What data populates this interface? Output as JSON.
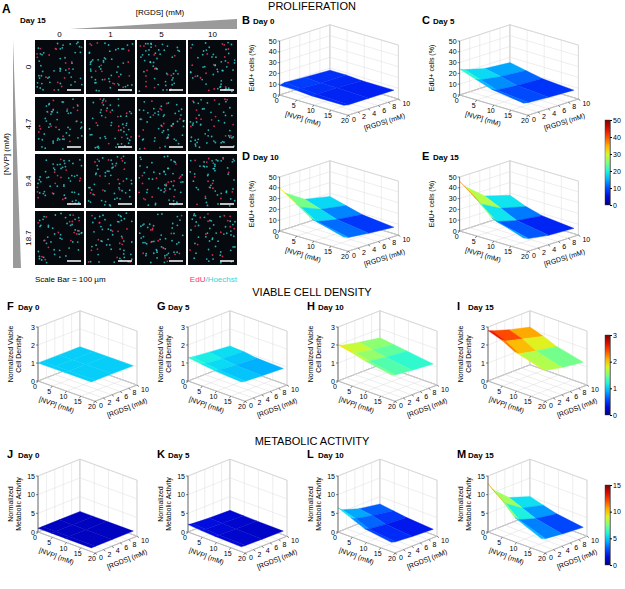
{
  "sections": [
    "PROLIFERATION",
    "VIABLE CELL DENSITY",
    "METABOLIC ACTIVITY"
  ],
  "image_panel": {
    "panel": "A",
    "title": "Day 15",
    "col_title": "[RGDS] (mM)",
    "col_labels": [
      "0",
      "1",
      "5",
      "10"
    ],
    "row_title": "[NVP] (mM)",
    "row_labels": [
      "0",
      "4.7",
      "9.4",
      "18.7"
    ],
    "note": "Scale Bar = 100 µm",
    "stain_labels": [
      {
        "text": "EdU",
        "color": "#ff3366"
      },
      {
        "text": "/Hoechst",
        "color": "#33d6d6"
      }
    ]
  },
  "chart_data": [
    {
      "type": "surface",
      "panel": "B",
      "title": "Day 0",
      "x_label": "[NVP] (mM)",
      "y_label": "[RGDS] (mM)",
      "z_label": [
        "EdU+ cells (%)"
      ],
      "x": [
        0,
        4.7,
        9.4,
        18.7
      ],
      "y": [
        0,
        1,
        5,
        10
      ],
      "z": [
        [
          9,
          10,
          9,
          8
        ],
        [
          9,
          9,
          8,
          8
        ],
        [
          8,
          8,
          8,
          7
        ],
        [
          8,
          7,
          7,
          7
        ]
      ],
      "xlim": [
        0,
        20
      ],
      "xticks": [
        0,
        5,
        10,
        15,
        20
      ],
      "ylim": [
        0,
        10
      ],
      "yticks": [
        0,
        2,
        4,
        6,
        8,
        10
      ],
      "zlim": [
        0,
        50
      ],
      "zticks": [
        0,
        10,
        20,
        30,
        40,
        50
      ],
      "grid": true
    },
    {
      "type": "surface",
      "panel": "C",
      "title": "Day 5",
      "x_label": "[NVP] (mM)",
      "y_label": "[RGDS] (mM)",
      "z_label": [
        "EdU+ cells (%)"
      ],
      "x": [
        0,
        4.7,
        9.4,
        18.7
      ],
      "y": [
        0,
        1,
        5,
        10
      ],
      "z": [
        [
          24,
          22,
          17,
          15
        ],
        [
          19,
          17,
          14,
          12
        ],
        [
          14,
          12,
          10,
          9
        ],
        [
          10,
          9,
          8,
          7
        ]
      ],
      "xlim": [
        0,
        20
      ],
      "xticks": [
        0,
        5,
        10,
        15,
        20
      ],
      "ylim": [
        0,
        10
      ],
      "yticks": [
        0,
        2,
        4,
        6,
        8,
        10
      ],
      "zlim": [
        0,
        50
      ],
      "zticks": [
        0,
        10,
        20,
        30,
        40,
        50
      ],
      "grid": true
    },
    {
      "type": "surface",
      "panel": "D",
      "title": "Day 10",
      "x_label": "[NVP] (mM)",
      "y_label": "[RGDS] (mM)",
      "z_label": [
        "EdU+ cells (%)"
      ],
      "x": [
        0,
        4.7,
        9.4,
        18.7
      ],
      "y": [
        0,
        1,
        5,
        10
      ],
      "z": [
        [
          40,
          34,
          22,
          17
        ],
        [
          30,
          25,
          17,
          13
        ],
        [
          20,
          16,
          12,
          9
        ],
        [
          12,
          10,
          8,
          6
        ]
      ],
      "xlim": [
        0,
        20
      ],
      "xticks": [
        0,
        5,
        10,
        15,
        20
      ],
      "ylim": [
        0,
        10
      ],
      "yticks": [
        0,
        2,
        4,
        6,
        8,
        10
      ],
      "zlim": [
        0,
        50
      ],
      "zticks": [
        0,
        10,
        20,
        30,
        40,
        50
      ],
      "grid": true
    },
    {
      "type": "surface",
      "panel": "E",
      "title": "Day 15",
      "x_label": "[NVP] (mM)",
      "y_label": "[RGDS] (mM)",
      "z_label": [
        "EdU+ cells (%)"
      ],
      "x": [
        0,
        4.7,
        9.4,
        18.7
      ],
      "y": [
        0,
        1,
        5,
        10
      ],
      "z": [
        [
          46,
          40,
          25,
          18
        ],
        [
          35,
          28,
          18,
          12
        ],
        [
          21,
          16,
          11,
          8
        ],
        [
          11,
          9,
          6,
          5
        ]
      ],
      "xlim": [
        0,
        20
      ],
      "xticks": [
        0,
        5,
        10,
        15,
        20
      ],
      "ylim": [
        0,
        10
      ],
      "yticks": [
        0,
        2,
        4,
        6,
        8,
        10
      ],
      "zlim": [
        0,
        50
      ],
      "zticks": [
        0,
        10,
        20,
        30,
        40,
        50
      ],
      "grid": true
    },
    {
      "type": "surface",
      "panel": "F",
      "title": "Day 0",
      "x_label": "[NVP] (mM)",
      "y_label": "[RGDS] (mM)",
      "z_label": [
        "Normalized Viable",
        "Cell Density"
      ],
      "x": [
        0,
        4.7,
        9.4,
        18.7
      ],
      "y": [
        0,
        1,
        5,
        10
      ],
      "z": [
        [
          1,
          1,
          1,
          1
        ],
        [
          1,
          1,
          1,
          1
        ],
        [
          1,
          1,
          1,
          1
        ],
        [
          1,
          1,
          1,
          1
        ]
      ],
      "xlim": [
        0,
        20
      ],
      "xticks": [
        0,
        5,
        10,
        15,
        20
      ],
      "ylim": [
        0,
        10
      ],
      "yticks": [
        0,
        2,
        4,
        6,
        8,
        10
      ],
      "zlim": [
        0,
        3
      ],
      "zticks": [
        0,
        1,
        2,
        3
      ],
      "grid": true
    },
    {
      "type": "surface",
      "panel": "G",
      "title": "Day 5",
      "x_label": "[NVP] (mM)",
      "y_label": "[RGDS] (mM)",
      "z_label": [
        "Normalized Viable",
        "Cell Density"
      ],
      "x": [
        0,
        4.7,
        9.4,
        18.7
      ],
      "y": [
        0,
        1,
        5,
        10
      ],
      "z": [
        [
          1.3,
          1.25,
          1.15,
          1.05
        ],
        [
          1.2,
          1.15,
          1.05,
          1.0
        ],
        [
          1.1,
          1.05,
          0.95,
          0.9
        ],
        [
          1.0,
          0.95,
          0.9,
          0.85
        ]
      ],
      "xlim": [
        0,
        20
      ],
      "xticks": [
        0,
        5,
        10,
        15,
        20
      ],
      "ylim": [
        0,
        10
      ],
      "yticks": [
        0,
        2,
        4,
        6,
        8,
        10
      ],
      "zlim": [
        0,
        3
      ],
      "zticks": [
        0,
        1,
        2,
        3
      ],
      "grid": true
    },
    {
      "type": "surface",
      "panel": "H",
      "title": "Day 10",
      "x_label": "[NVP] (mM)",
      "y_label": "[RGDS] (mM)",
      "z_label": [
        "Normalized Viable",
        "Cell Density"
      ],
      "x": [
        0,
        4.7,
        9.4,
        18.7
      ],
      "y": [
        0,
        1,
        5,
        10
      ],
      "z": [
        [
          2.0,
          1.9,
          1.7,
          1.5
        ],
        [
          1.85,
          1.75,
          1.55,
          1.4
        ],
        [
          1.65,
          1.55,
          1.4,
          1.3
        ],
        [
          1.4,
          1.3,
          1.2,
          1.1
        ]
      ],
      "xlim": [
        0,
        20
      ],
      "xticks": [
        0,
        5,
        10,
        15,
        20
      ],
      "ylim": [
        0,
        10
      ],
      "yticks": [
        0,
        2,
        4,
        6,
        8,
        10
      ],
      "zlim": [
        0,
        3
      ],
      "zticks": [
        0,
        1,
        2,
        3
      ],
      "grid": true
    },
    {
      "type": "surface",
      "panel": "I",
      "title": "Day 15",
      "x_label": "[NVP] (mM)",
      "y_label": "[RGDS] (mM)",
      "z_label": [
        "Normalized Viable",
        "Cell Density"
      ],
      "x": [
        0,
        4.7,
        9.4,
        18.7
      ],
      "y": [
        0,
        1,
        5,
        10
      ],
      "z": [
        [
          2.8,
          2.7,
          2.4,
          2.1
        ],
        [
          2.55,
          2.4,
          2.15,
          1.85
        ],
        [
          2.15,
          1.95,
          1.75,
          1.55
        ],
        [
          1.75,
          1.55,
          1.35,
          1.2
        ]
      ],
      "xlim": [
        0,
        20
      ],
      "xticks": [
        0,
        5,
        10,
        15,
        20
      ],
      "ylim": [
        0,
        10
      ],
      "yticks": [
        0,
        2,
        4,
        6,
        8,
        10
      ],
      "zlim": [
        0,
        3
      ],
      "zticks": [
        0,
        1,
        2,
        3
      ],
      "grid": true
    },
    {
      "type": "surface",
      "panel": "J",
      "title": "Day 0",
      "x_label": "[NVP] (mM)",
      "y_label": "[RGDS] (mM)",
      "z_label": [
        "Normalized",
        "Metabolic Activity"
      ],
      "x": [
        0,
        4.7,
        9.4,
        18.7
      ],
      "y": [
        0,
        1,
        5,
        10
      ],
      "z": [
        [
          1,
          1,
          1,
          1
        ],
        [
          1,
          1,
          1,
          1
        ],
        [
          1,
          1,
          1,
          1
        ],
        [
          1,
          1,
          1,
          1
        ]
      ],
      "xlim": [
        0,
        20
      ],
      "xticks": [
        0,
        5,
        10,
        15,
        20
      ],
      "ylim": [
        0,
        10
      ],
      "yticks": [
        0,
        2,
        4,
        6,
        8,
        10
      ],
      "zlim": [
        0,
        15
      ],
      "zticks": [
        0,
        5,
        10,
        15
      ],
      "grid": true
    },
    {
      "type": "surface",
      "panel": "K",
      "title": "Day 5",
      "x_label": "[NVP] (mM)",
      "y_label": "[RGDS] (mM)",
      "z_label": [
        "Normalized",
        "Metabolic Activity"
      ],
      "x": [
        0,
        4.7,
        9.4,
        18.7
      ],
      "y": [
        0,
        1,
        5,
        10
      ],
      "z": [
        [
          2.0,
          1.8,
          1.5,
          1.3
        ],
        [
          1.7,
          1.6,
          1.4,
          1.2
        ],
        [
          1.5,
          1.4,
          1.2,
          1.1
        ],
        [
          1.3,
          1.2,
          1.1,
          1.0
        ]
      ],
      "xlim": [
        0,
        20
      ],
      "xticks": [
        0,
        5,
        10,
        15,
        20
      ],
      "ylim": [
        0,
        10
      ],
      "yticks": [
        0,
        2,
        4,
        6,
        8,
        10
      ],
      "zlim": [
        0,
        15
      ],
      "zticks": [
        0,
        5,
        10,
        15
      ],
      "grid": true
    },
    {
      "type": "surface",
      "panel": "L",
      "title": "Day 10",
      "x_label": "[NVP] (mM)",
      "y_label": "[RGDS] (mM)",
      "z_label": [
        "Normalized",
        "Metabolic Activity"
      ],
      "x": [
        0,
        4.7,
        9.4,
        18.7
      ],
      "y": [
        0,
        1,
        5,
        10
      ],
      "z": [
        [
          6.5,
          5.5,
          4,
          3
        ],
        [
          5,
          4.5,
          3.5,
          2.5
        ],
        [
          3.5,
          3,
          2.5,
          2
        ],
        [
          2.5,
          2.2,
          1.8,
          1.5
        ]
      ],
      "xlim": [
        0,
        20
      ],
      "xticks": [
        0,
        5,
        10,
        15,
        20
      ],
      "ylim": [
        0,
        10
      ],
      "yticks": [
        0,
        2,
        4,
        6,
        8,
        10
      ],
      "zlim": [
        0,
        15
      ],
      "zticks": [
        0,
        5,
        10,
        15
      ],
      "grid": true
    },
    {
      "type": "surface",
      "panel": "M",
      "title": "Day 15",
      "x_label": "[NVP] (mM)",
      "y_label": "[RGDS] (mM)",
      "z_label": [
        "Normalized",
        "Metabolic Activity"
      ],
      "x": [
        0,
        4.7,
        9.4,
        18.7
      ],
      "y": [
        0,
        1,
        5,
        10
      ],
      "z": [
        [
          13,
          11,
          7,
          5
        ],
        [
          10,
          8.5,
          5.5,
          4
        ],
        [
          6.5,
          5.5,
          4,
          3
        ],
        [
          3.5,
          3,
          2.5,
          2
        ]
      ],
      "xlim": [
        0,
        20
      ],
      "xticks": [
        0,
        5,
        10,
        15,
        20
      ],
      "ylim": [
        0,
        10
      ],
      "yticks": [
        0,
        2,
        4,
        6,
        8,
        10
      ],
      "zlim": [
        0,
        15
      ],
      "zticks": [
        0,
        5,
        10,
        15
      ],
      "grid": true
    }
  ],
  "colorbars": [
    {
      "range": [
        0,
        50
      ],
      "ticks": [
        0,
        10,
        20,
        30,
        40,
        50
      ]
    },
    {
      "range": [
        0,
        3
      ],
      "ticks": [
        0,
        1,
        2,
        3
      ]
    },
    {
      "range": [
        0,
        15
      ],
      "ticks": [
        0,
        5,
        10,
        15
      ]
    }
  ]
}
